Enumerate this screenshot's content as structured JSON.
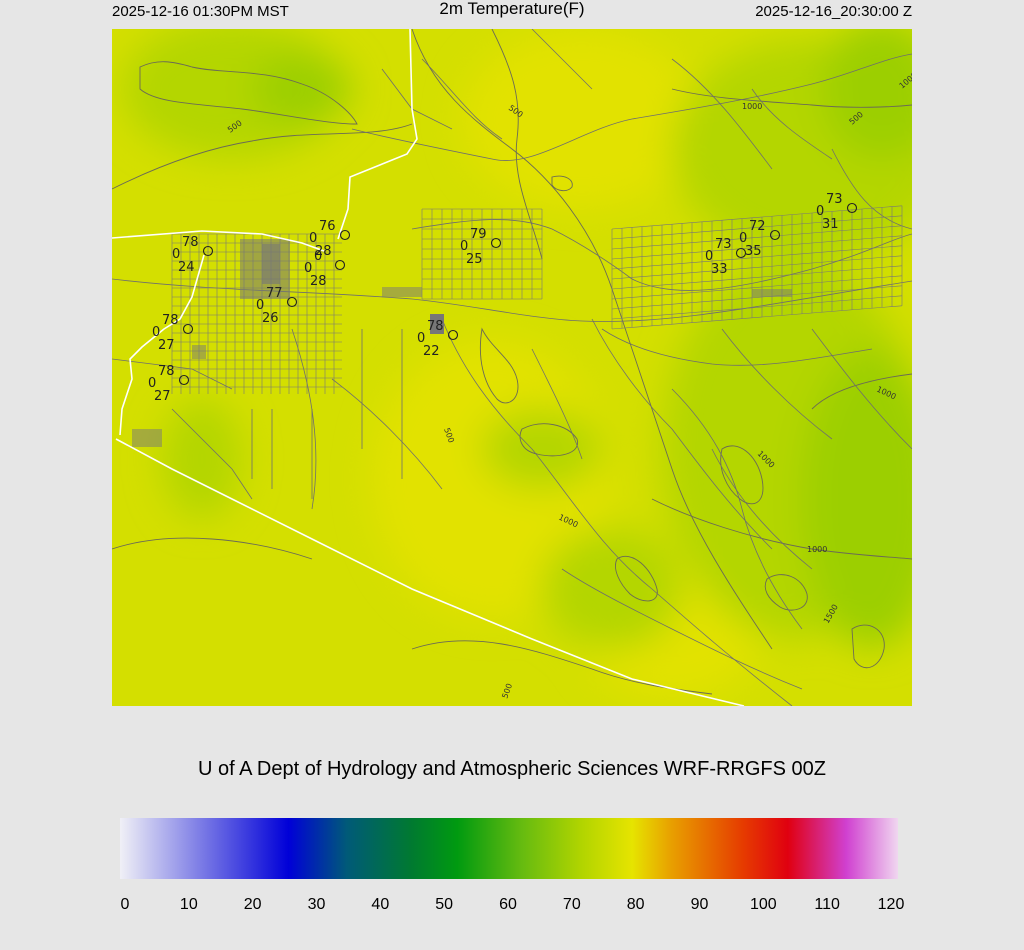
{
  "header": {
    "local_time": "2025-12-16 01:30PM MST",
    "title": "2m Temperature(F)",
    "utc_time": "2025-12-16_20:30:00 Z"
  },
  "credit": "U of A Dept of Hydrology and Atmospheric Sciences WRF-RRGFS 00Z",
  "colorbar": {
    "ticks": [
      "0",
      "10",
      "20",
      "30",
      "40",
      "50",
      "60",
      "70",
      "80",
      "90",
      "100",
      "110",
      "120"
    ],
    "range": [
      0,
      120
    ],
    "stops": [
      {
        "value": 0,
        "color": "#f0f0f6"
      },
      {
        "value": 12,
        "color": "#8080e6"
      },
      {
        "value": 26,
        "color": "#0000d8"
      },
      {
        "value": 35,
        "color": "#005a78"
      },
      {
        "value": 45,
        "color": "#007a30"
      },
      {
        "value": 52,
        "color": "#009a10"
      },
      {
        "value": 62,
        "color": "#66bb10"
      },
      {
        "value": 71,
        "color": "#b0d400"
      },
      {
        "value": 79,
        "color": "#e6e400"
      },
      {
        "value": 85,
        "color": "#e8a000"
      },
      {
        "value": 96,
        "color": "#e63c00"
      },
      {
        "value": 103,
        "color": "#e00010"
      },
      {
        "value": 112,
        "color": "#d040d0"
      },
      {
        "value": 120,
        "color": "#f0d6f0"
      }
    ]
  },
  "map": {
    "fill_colors": {
      "base": "#d4df00",
      "warm": "#e2e200",
      "cool": "#b4d600",
      "coolest": "#9ccf00"
    },
    "contour_labels": [
      "500",
      "1000",
      "500",
      "500",
      "1000",
      "1000",
      "1000",
      "1000",
      "500",
      "1500",
      "500",
      "1000"
    ],
    "stations": [
      {
        "temp": "78",
        "wind": "0",
        "dew": "24"
      },
      {
        "temp": "76",
        "wind": "0",
        "dew": "28"
      },
      {
        "temp": "0",
        "wind": "0",
        "dew": "28"
      },
      {
        "temp": "77",
        "wind": "0",
        "dew": "26"
      },
      {
        "temp": "78",
        "wind": "0",
        "dew": "27"
      },
      {
        "temp": "78",
        "wind": "0",
        "dew": "27"
      },
      {
        "temp": "79",
        "wind": "0",
        "dew": "25"
      },
      {
        "temp": "78",
        "wind": "0",
        "dew": "22"
      },
      {
        "temp": "73",
        "wind": "0",
        "dew": "31"
      },
      {
        "temp": "72",
        "wind": "0",
        "dew": "35"
      },
      {
        "temp": "73",
        "wind": "0",
        "dew": "33"
      }
    ]
  }
}
